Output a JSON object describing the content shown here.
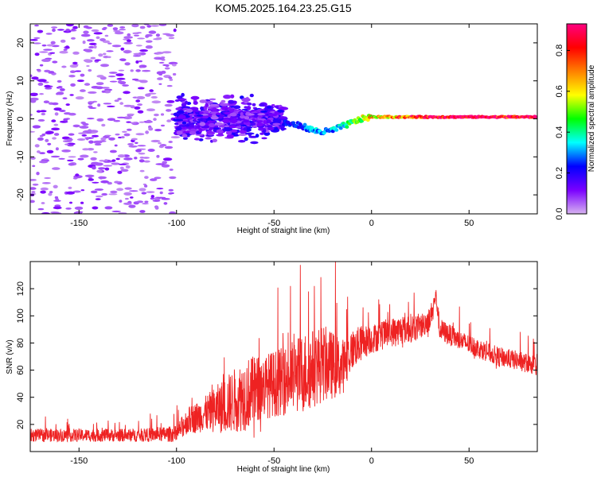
{
  "title": "KOM5.2025.164.23.25.G15",
  "chart_data": [
    {
      "type": "heatmap",
      "xlabel": "Height of straight line (km)",
      "ylabel": "Frequency (Hz)",
      "xlim": [
        -175,
        85
      ],
      "ylim": [
        -25,
        25
      ],
      "xticks": [
        -150,
        -100,
        -50,
        0,
        50
      ],
      "yticks": [
        -20,
        -10,
        0,
        10,
        20
      ],
      "grid": false,
      "colorbar": {
        "label": "Normalized spectral amplitude",
        "range": [
          0,
          0.93
        ],
        "ticks": [
          0.0,
          0.2,
          0.4,
          0.6,
          0.8
        ],
        "colormap": [
          "#d7b3f0",
          "#7a00ff",
          "#0000ff",
          "#00ffff",
          "#00ff00",
          "#ffff00",
          "#ff8000",
          "#ff0000",
          "#ff0080"
        ]
      },
      "features": [
        {
          "region": "noise",
          "x_range": [
            -175,
            -100
          ],
          "freq_range": [
            -25,
            25
          ],
          "amplitude": 0.05
        },
        {
          "region": "cluster",
          "x_range": [
            -100,
            -45
          ],
          "freq_range": [
            -7,
            7
          ],
          "amplitude": 0.12
        },
        {
          "region": "signal-line",
          "x": [
            -45,
            -35,
            -30,
            -25,
            -20,
            -15,
            -10,
            -5,
            0,
            5,
            10,
            20,
            30,
            50,
            85
          ],
          "freq": [
            -1,
            -2,
            -3,
            -3.5,
            -3,
            -2,
            -1,
            0,
            0.5,
            0.5,
            0.5,
            0.5,
            0.5,
            0.5,
            0.5
          ],
          "amplitude": [
            0.2,
            0.25,
            0.3,
            0.3,
            0.3,
            0.35,
            0.45,
            0.55,
            0.6,
            0.65,
            0.7,
            0.75,
            0.85,
            0.9,
            0.9
          ]
        }
      ]
    },
    {
      "type": "line",
      "xlabel": "Height of straight line (km)",
      "ylabel": "SNR (v/v)",
      "xlim": [
        -175,
        85
      ],
      "ylim": [
        0,
        140
      ],
      "xticks": [
        -150,
        -100,
        -50,
        0,
        50
      ],
      "yticks": [
        20,
        40,
        60,
        80,
        100,
        120
      ],
      "grid": false,
      "series": [
        {
          "color": "#ee2222",
          "x": [
            -175,
            -160,
            -140,
            -120,
            -100,
            -95,
            -85,
            -75,
            -65,
            -55,
            -45,
            -35,
            -25,
            -15,
            -10,
            -5,
            0,
            10,
            20,
            25,
            30,
            33,
            35,
            45,
            55,
            65,
            75,
            85
          ],
          "center": [
            12,
            12,
            12,
            12,
            13,
            22,
            28,
            34,
            42,
            48,
            52,
            58,
            65,
            62,
            75,
            80,
            83,
            88,
            91,
            92,
            98,
            115,
            90,
            82,
            76,
            70,
            67,
            63
          ],
          "spread": [
            8,
            8,
            8,
            8,
            10,
            16,
            22,
            35,
            45,
            40,
            42,
            50,
            48,
            35,
            25,
            22,
            18,
            18,
            18,
            16,
            15,
            10,
            14,
            12,
            12,
            12,
            12,
            12
          ]
        }
      ]
    }
  ]
}
